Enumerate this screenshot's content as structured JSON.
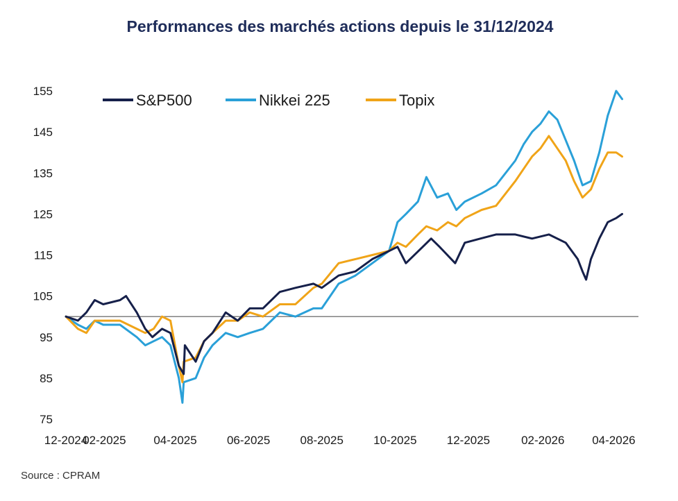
{
  "chart_data": {
    "type": "line",
    "title": "Performances des marchés actions depuis le 31/12/2024",
    "xlabel": "",
    "ylabel": "",
    "source": "Source : CPRAM",
    "x_ticks": [
      "12-2024",
      "02-2025",
      "04-2025",
      "06-2025",
      "08-2025",
      "10-2025",
      "12-2025",
      "02-2026",
      "04-2026"
    ],
    "y_ticks": [
      75,
      85,
      95,
      105,
      115,
      125,
      135,
      145,
      155
    ],
    "xlim": [
      "2024-12-31",
      "2026-04-10"
    ],
    "ylim": [
      75,
      155
    ],
    "reference_line": 100,
    "grid": false,
    "legend_position": "top-left",
    "series": [
      {
        "name": "S&P500",
        "color": "#16204a",
        "points": [
          [
            "2024-12-31",
            100
          ],
          [
            "2025-01-10",
            99
          ],
          [
            "2025-01-17",
            101
          ],
          [
            "2025-01-24",
            104
          ],
          [
            "2025-01-31",
            103
          ],
          [
            "2025-02-07",
            103.5
          ],
          [
            "2025-02-14",
            104
          ],
          [
            "2025-02-19",
            105
          ],
          [
            "2025-02-28",
            101
          ],
          [
            "2025-03-07",
            97
          ],
          [
            "2025-03-13",
            95
          ],
          [
            "2025-03-21",
            97
          ],
          [
            "2025-03-28",
            96
          ],
          [
            "2025-04-04",
            88
          ],
          [
            "2025-04-08",
            86
          ],
          [
            "2025-04-09",
            93
          ],
          [
            "2025-04-18",
            89
          ],
          [
            "2025-04-25",
            94
          ],
          [
            "2025-05-02",
            96
          ],
          [
            "2025-05-13",
            101
          ],
          [
            "2025-05-23",
            99
          ],
          [
            "2025-06-02",
            102
          ],
          [
            "2025-06-13",
            102
          ],
          [
            "2025-06-27",
            106
          ],
          [
            "2025-07-10",
            107
          ],
          [
            "2025-07-25",
            108
          ],
          [
            "2025-08-01",
            107
          ],
          [
            "2025-08-15",
            110
          ],
          [
            "2025-08-29",
            111
          ],
          [
            "2025-09-12",
            114
          ],
          [
            "2025-09-26",
            116
          ],
          [
            "2025-10-03",
            117
          ],
          [
            "2025-10-10",
            113
          ],
          [
            "2025-10-24",
            117
          ],
          [
            "2025-10-31",
            119
          ],
          [
            "2025-11-07",
            117
          ],
          [
            "2025-11-20",
            113
          ],
          [
            "2025-11-28",
            118
          ],
          [
            "2025-12-11",
            119
          ],
          [
            "2025-12-24",
            120
          ],
          [
            "2026-01-09",
            120
          ],
          [
            "2026-01-23",
            119
          ],
          [
            "2026-02-06",
            120
          ],
          [
            "2026-02-20",
            118
          ],
          [
            "2026-03-02",
            114
          ],
          [
            "2026-03-06",
            111
          ],
          [
            "2026-03-09",
            109
          ],
          [
            "2026-03-13",
            114
          ],
          [
            "2026-03-20",
            119
          ],
          [
            "2026-03-27",
            123
          ],
          [
            "2026-04-03",
            124
          ],
          [
            "2026-04-08",
            125
          ]
        ]
      },
      {
        "name": "Nikkei 225",
        "color": "#2aa0d8",
        "points": [
          [
            "2024-12-31",
            100
          ],
          [
            "2025-01-10",
            98
          ],
          [
            "2025-01-17",
            97
          ],
          [
            "2025-01-24",
            99
          ],
          [
            "2025-01-31",
            98
          ],
          [
            "2025-02-14",
            98
          ],
          [
            "2025-02-28",
            95
          ],
          [
            "2025-03-07",
            93
          ],
          [
            "2025-03-14",
            94
          ],
          [
            "2025-03-21",
            95
          ],
          [
            "2025-03-28",
            93
          ],
          [
            "2025-04-04",
            85
          ],
          [
            "2025-04-07",
            79
          ],
          [
            "2025-04-08",
            84
          ],
          [
            "2025-04-18",
            85
          ],
          [
            "2025-04-25",
            90
          ],
          [
            "2025-05-02",
            93
          ],
          [
            "2025-05-13",
            96
          ],
          [
            "2025-05-23",
            95
          ],
          [
            "2025-06-02",
            96
          ],
          [
            "2025-06-13",
            97
          ],
          [
            "2025-06-27",
            101
          ],
          [
            "2025-07-10",
            100
          ],
          [
            "2025-07-25",
            102
          ],
          [
            "2025-08-01",
            102
          ],
          [
            "2025-08-15",
            108
          ],
          [
            "2025-08-29",
            110
          ],
          [
            "2025-09-12",
            113
          ],
          [
            "2025-09-26",
            116
          ],
          [
            "2025-10-03",
            123
          ],
          [
            "2025-10-10",
            125
          ],
          [
            "2025-10-20",
            128
          ],
          [
            "2025-10-27",
            134
          ],
          [
            "2025-11-05",
            129
          ],
          [
            "2025-11-14",
            130
          ],
          [
            "2025-11-21",
            126
          ],
          [
            "2025-11-28",
            128
          ],
          [
            "2025-12-12",
            130
          ],
          [
            "2025-12-24",
            132
          ],
          [
            "2026-01-09",
            138
          ],
          [
            "2026-01-16",
            142
          ],
          [
            "2026-01-23",
            145
          ],
          [
            "2026-01-30",
            147
          ],
          [
            "2026-02-06",
            150
          ],
          [
            "2026-02-13",
            148
          ],
          [
            "2026-02-20",
            143
          ],
          [
            "2026-02-27",
            138
          ],
          [
            "2026-03-06",
            132
          ],
          [
            "2026-03-13",
            133
          ],
          [
            "2026-03-20",
            140
          ],
          [
            "2026-03-27",
            149
          ],
          [
            "2026-04-03",
            155
          ],
          [
            "2026-04-08",
            153
          ]
        ]
      },
      {
        "name": "Topix",
        "color": "#f0a418",
        "points": [
          [
            "2024-12-31",
            100
          ],
          [
            "2025-01-10",
            97
          ],
          [
            "2025-01-17",
            96
          ],
          [
            "2025-01-24",
            99
          ],
          [
            "2025-01-31",
            99
          ],
          [
            "2025-02-14",
            99
          ],
          [
            "2025-02-28",
            97
          ],
          [
            "2025-03-07",
            96
          ],
          [
            "2025-03-14",
            97
          ],
          [
            "2025-03-21",
            100
          ],
          [
            "2025-03-28",
            99
          ],
          [
            "2025-04-04",
            88
          ],
          [
            "2025-04-07",
            84
          ],
          [
            "2025-04-08",
            89
          ],
          [
            "2025-04-18",
            90
          ],
          [
            "2025-04-25",
            94
          ],
          [
            "2025-05-02",
            96
          ],
          [
            "2025-05-13",
            99
          ],
          [
            "2025-05-23",
            99
          ],
          [
            "2025-06-02",
            101
          ],
          [
            "2025-06-13",
            100
          ],
          [
            "2025-06-27",
            103
          ],
          [
            "2025-07-10",
            103
          ],
          [
            "2025-07-25",
            107
          ],
          [
            "2025-08-01",
            108
          ],
          [
            "2025-08-15",
            113
          ],
          [
            "2025-08-29",
            114
          ],
          [
            "2025-09-12",
            115
          ],
          [
            "2025-09-26",
            116
          ],
          [
            "2025-10-03",
            118
          ],
          [
            "2025-10-10",
            117
          ],
          [
            "2025-10-20",
            120
          ],
          [
            "2025-10-27",
            122
          ],
          [
            "2025-11-05",
            121
          ],
          [
            "2025-11-14",
            123
          ],
          [
            "2025-11-21",
            122
          ],
          [
            "2025-11-28",
            124
          ],
          [
            "2025-12-12",
            126
          ],
          [
            "2025-12-24",
            127
          ],
          [
            "2026-01-09",
            133
          ],
          [
            "2026-01-16",
            136
          ],
          [
            "2026-01-23",
            139
          ],
          [
            "2026-01-30",
            141
          ],
          [
            "2026-02-06",
            144
          ],
          [
            "2026-02-13",
            141
          ],
          [
            "2026-02-20",
            138
          ],
          [
            "2026-02-27",
            133
          ],
          [
            "2026-03-06",
            129
          ],
          [
            "2026-03-13",
            131
          ],
          [
            "2026-03-20",
            136
          ],
          [
            "2026-03-27",
            140
          ],
          [
            "2026-04-03",
            140
          ],
          [
            "2026-04-08",
            139
          ]
        ]
      }
    ]
  }
}
